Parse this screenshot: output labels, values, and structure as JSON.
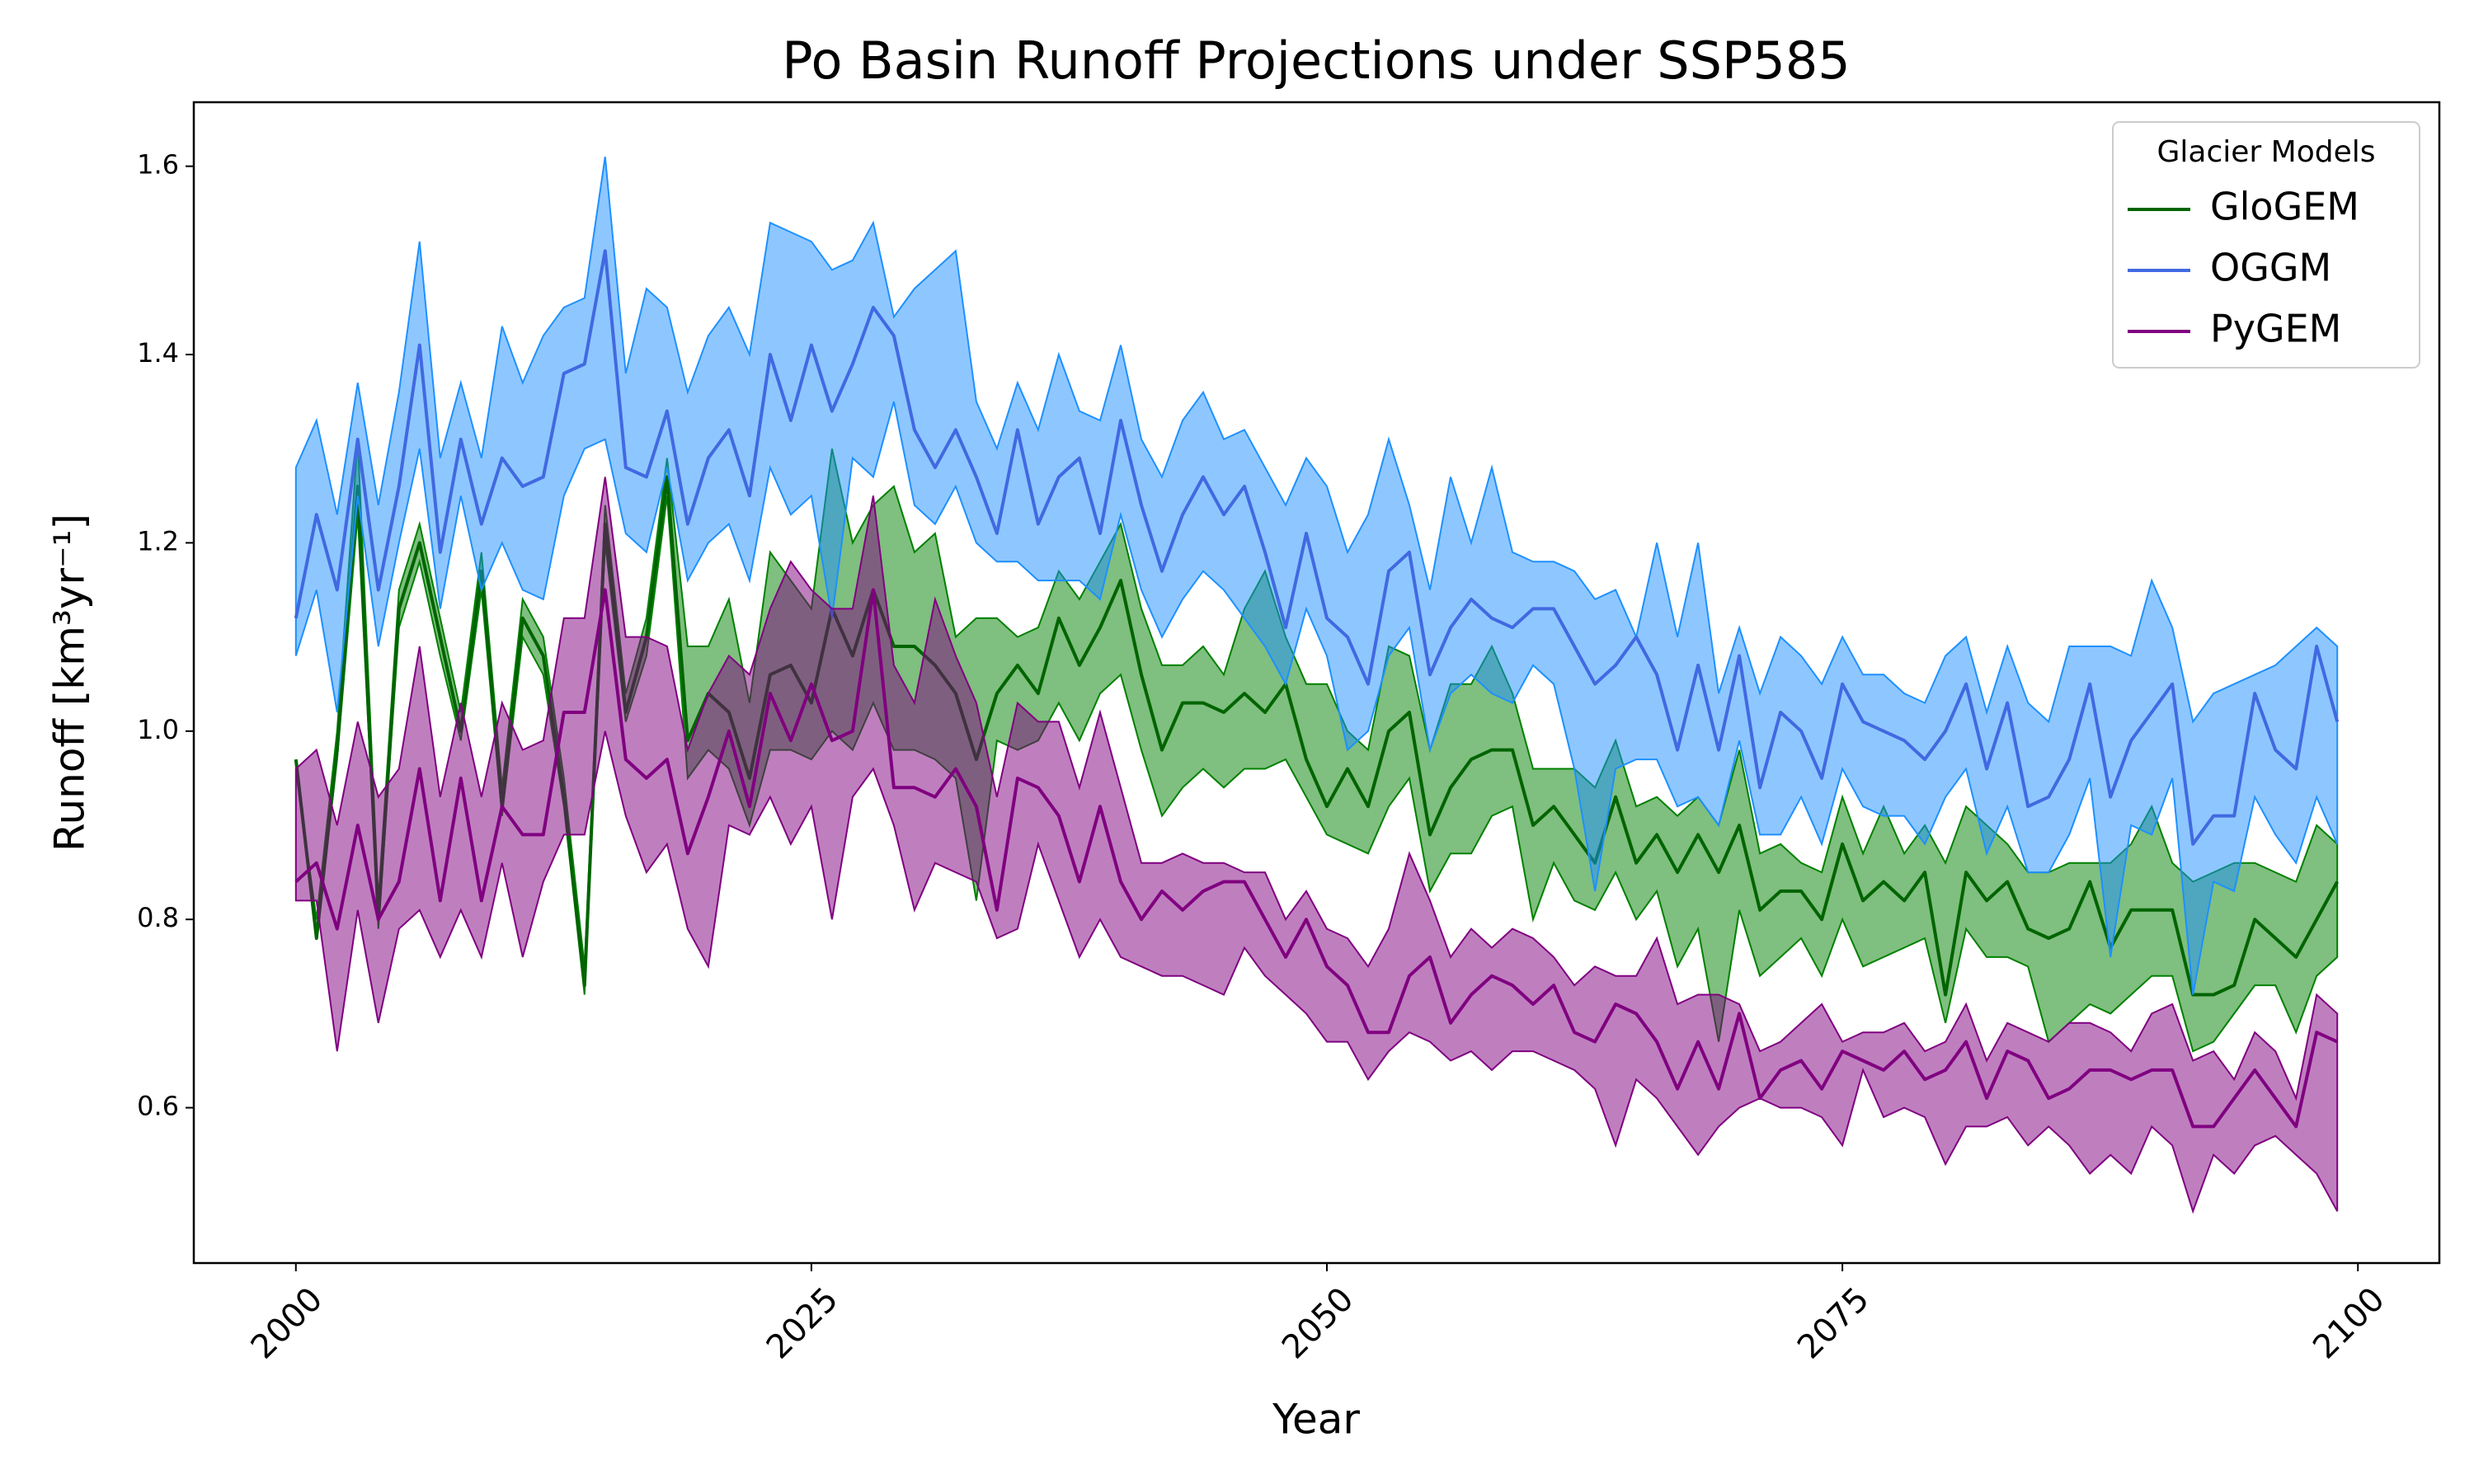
{
  "chart_data": {
    "type": "line-band",
    "title": "Po Basin Runoff Projections under SSP585",
    "x_label": "Year",
    "y_label": "Runoff [km³yr⁻¹]",
    "legend_title": "Glacier Models",
    "legend_position": "upper right",
    "xlim": [
      1995.05,
      2103.95
    ],
    "ylim": [
      0.435,
      1.668
    ],
    "xticks": [
      2000,
      2025,
      2050,
      2075,
      2100
    ],
    "yticks": [
      0.6,
      0.8,
      {
        "value": 1,
        "label": "1.0"
      },
      1.2,
      1.4,
      1.6
    ],
    "x": [
      2000,
      2001,
      2002,
      2003,
      2004,
      2005,
      2006,
      2007,
      2008,
      2009,
      2010,
      2011,
      2012,
      2013,
      2014,
      2015,
      2016,
      2017,
      2018,
      2019,
      2020,
      2021,
      2022,
      2023,
      2024,
      2025,
      2026,
      2027,
      2028,
      2029,
      2030,
      2031,
      2032,
      2033,
      2034,
      2035,
      2036,
      2037,
      2038,
      2039,
      2040,
      2041,
      2042,
      2043,
      2044,
      2045,
      2046,
      2047,
      2048,
      2049,
      2050,
      2051,
      2052,
      2053,
      2054,
      2055,
      2056,
      2057,
      2058,
      2059,
      2060,
      2061,
      2062,
      2063,
      2064,
      2065,
      2066,
      2067,
      2068,
      2069,
      2070,
      2071,
      2072,
      2073,
      2074,
      2075,
      2076,
      2077,
      2078,
      2079,
      2080,
      2081,
      2082,
      2083,
      2084,
      2085,
      2086,
      2087,
      2088,
      2089,
      2090,
      2091,
      2092,
      2093,
      2094,
      2095,
      2096,
      2097,
      2098,
      2099
    ],
    "series": [
      {
        "name": "GloGEM",
        "color": "#006400",
        "band_color": "#008000",
        "values": [
          0.97,
          0.78,
          0.98,
          1.26,
          0.8,
          1.13,
          1.2,
          1.1,
          1.0,
          1.17,
          0.92,
          1.12,
          1.08,
          0.93,
          0.73,
          1.22,
          1.02,
          1.1,
          1.27,
          0.99,
          1.04,
          1.02,
          0.95,
          1.06,
          1.07,
          1.03,
          1.13,
          1.08,
          1.15,
          1.09,
          1.09,
          1.07,
          1.04,
          0.97,
          1.04,
          1.07,
          1.04,
          1.12,
          1.07,
          1.11,
          1.16,
          1.06,
          0.98,
          1.03,
          1.03,
          1.02,
          1.04,
          1.02,
          1.05,
          0.97,
          0.92,
          0.96,
          0.92,
          1.0,
          1.02,
          0.89,
          0.94,
          0.97,
          0.98,
          0.98,
          0.9,
          0.92,
          0.89,
          0.86,
          0.93,
          0.86,
          0.89,
          0.85,
          0.89,
          0.85,
          0.9,
          0.81,
          0.83,
          0.83,
          0.8,
          0.88,
          0.82,
          0.84,
          0.82,
          0.85,
          0.72,
          0.85,
          0.82,
          0.84,
          0.79,
          0.78,
          0.79,
          0.84,
          0.77,
          0.81,
          0.81,
          0.81,
          0.72,
          0.72,
          0.73,
          0.8,
          0.78,
          0.76,
          0.8,
          0.84
        ],
        "upper": [
          0.96,
          0.8,
          1.0,
          1.31,
          0.82,
          1.15,
          1.22,
          1.12,
          1.02,
          1.19,
          0.94,
          1.14,
          1.1,
          0.95,
          0.75,
          1.24,
          1.04,
          1.12,
          1.29,
          1.09,
          1.09,
          1.14,
          1.03,
          1.19,
          1.16,
          1.13,
          1.3,
          1.2,
          1.24,
          1.26,
          1.19,
          1.21,
          1.1,
          1.12,
          1.12,
          1.1,
          1.11,
          1.17,
          1.14,
          1.18,
          1.22,
          1.13,
          1.07,
          1.07,
          1.09,
          1.06,
          1.13,
          1.17,
          1.1,
          1.05,
          1.05,
          1.0,
          0.98,
          1.09,
          1.08,
          0.98,
          1.05,
          1.05,
          1.09,
          1.04,
          0.96,
          0.96,
          0.96,
          0.94,
          0.99,
          0.92,
          0.93,
          0.91,
          0.93,
          0.9,
          0.98,
          0.87,
          0.88,
          0.86,
          0.85,
          0.93,
          0.87,
          0.92,
          0.87,
          0.9,
          0.86,
          0.92,
          0.9,
          0.88,
          0.85,
          0.85,
          0.86,
          0.86,
          0.86,
          0.88,
          0.92,
          0.86,
          0.84,
          0.85,
          0.86,
          0.86,
          0.85,
          0.84,
          0.9,
          0.88
        ],
        "lower": [
          0.96,
          0.78,
          0.97,
          1.23,
          0.79,
          1.11,
          1.18,
          1.08,
          0.99,
          1.15,
          0.91,
          1.1,
          1.06,
          0.92,
          0.72,
          1.2,
          1.01,
          1.08,
          1.25,
          0.95,
          0.98,
          0.96,
          0.9,
          0.98,
          0.98,
          0.97,
          1.0,
          0.98,
          1.03,
          0.98,
          0.98,
          0.97,
          0.95,
          0.82,
          0.99,
          0.98,
          0.99,
          1.03,
          0.99,
          1.04,
          1.06,
          0.98,
          0.91,
          0.94,
          0.96,
          0.94,
          0.96,
          0.96,
          0.97,
          0.93,
          0.89,
          0.88,
          0.87,
          0.92,
          0.95,
          0.83,
          0.87,
          0.87,
          0.91,
          0.92,
          0.8,
          0.86,
          0.82,
          0.81,
          0.85,
          0.8,
          0.83,
          0.75,
          0.79,
          0.67,
          0.81,
          0.74,
          0.76,
          0.78,
          0.74,
          0.8,
          0.75,
          0.76,
          0.77,
          0.78,
          0.69,
          0.79,
          0.76,
          0.76,
          0.75,
          0.67,
          0.69,
          0.71,
          0.7,
          0.72,
          0.74,
          0.74,
          0.66,
          0.67,
          0.7,
          0.73,
          0.73,
          0.68,
          0.74,
          0.76
        ]
      },
      {
        "name": "OGGM",
        "color": "#4169e1",
        "band_color": "#1e90ff",
        "values": [
          1.12,
          1.23,
          1.15,
          1.31,
          1.15,
          1.26,
          1.41,
          1.19,
          1.31,
          1.22,
          1.29,
          1.26,
          1.27,
          1.38,
          1.39,
          1.51,
          1.28,
          1.27,
          1.34,
          1.22,
          1.29,
          1.32,
          1.25,
          1.4,
          1.33,
          1.41,
          1.34,
          1.39,
          1.45,
          1.42,
          1.32,
          1.28,
          1.32,
          1.27,
          1.21,
          1.32,
          1.22,
          1.27,
          1.29,
          1.21,
          1.33,
          1.24,
          1.17,
          1.23,
          1.27,
          1.23,
          1.26,
          1.19,
          1.11,
          1.21,
          1.12,
          1.1,
          1.05,
          1.17,
          1.19,
          1.06,
          1.11,
          1.14,
          1.12,
          1.11,
          1.13,
          1.13,
          1.09,
          1.05,
          1.07,
          1.1,
          1.06,
          0.98,
          1.07,
          0.98,
          1.08,
          0.94,
          1.02,
          1.0,
          0.95,
          1.05,
          1.01,
          1.0,
          0.99,
          0.97,
          1.0,
          1.05,
          0.96,
          1.03,
          0.92,
          0.93,
          0.97,
          1.05,
          0.93,
          0.99,
          1.02,
          1.05,
          0.88,
          0.91,
          0.91,
          1.04,
          0.98,
          0.96,
          1.09,
          1.01
        ],
        "upper": [
          1.28,
          1.33,
          1.23,
          1.37,
          1.24,
          1.36,
          1.52,
          1.29,
          1.37,
          1.29,
          1.43,
          1.37,
          1.42,
          1.45,
          1.46,
          1.61,
          1.38,
          1.47,
          1.45,
          1.36,
          1.42,
          1.45,
          1.4,
          1.54,
          1.53,
          1.52,
          1.49,
          1.5,
          1.54,
          1.44,
          1.47,
          1.49,
          1.51,
          1.35,
          1.3,
          1.37,
          1.32,
          1.4,
          1.34,
          1.33,
          1.41,
          1.31,
          1.27,
          1.33,
          1.36,
          1.31,
          1.32,
          1.28,
          1.24,
          1.29,
          1.26,
          1.19,
          1.23,
          1.31,
          1.24,
          1.15,
          1.27,
          1.2,
          1.28,
          1.19,
          1.18,
          1.18,
          1.17,
          1.14,
          1.15,
          1.1,
          1.2,
          1.1,
          1.2,
          1.04,
          1.11,
          1.04,
          1.1,
          1.08,
          1.05,
          1.1,
          1.06,
          1.06,
          1.04,
          1.03,
          1.08,
          1.1,
          1.02,
          1.09,
          1.03,
          1.01,
          1.09,
          1.09,
          1.09,
          1.08,
          1.16,
          1.11,
          1.01,
          1.04,
          1.05,
          1.06,
          1.07,
          1.09,
          1.11,
          1.09
        ],
        "lower": [
          1.08,
          1.15,
          1.02,
          1.25,
          1.09,
          1.2,
          1.3,
          1.13,
          1.25,
          1.15,
          1.2,
          1.15,
          1.14,
          1.25,
          1.3,
          1.31,
          1.21,
          1.19,
          1.28,
          1.16,
          1.2,
          1.22,
          1.16,
          1.28,
          1.23,
          1.25,
          1.12,
          1.29,
          1.27,
          1.35,
          1.24,
          1.22,
          1.26,
          1.2,
          1.18,
          1.18,
          1.16,
          1.16,
          1.16,
          1.14,
          1.23,
          1.15,
          1.1,
          1.14,
          1.17,
          1.15,
          1.12,
          1.09,
          1.05,
          1.13,
          1.08,
          0.98,
          1.0,
          1.08,
          1.11,
          0.98,
          1.04,
          1.06,
          1.04,
          1.03,
          1.07,
          1.05,
          0.96,
          0.83,
          0.96,
          0.97,
          0.97,
          0.92,
          0.93,
          0.9,
          0.99,
          0.89,
          0.89,
          0.93,
          0.88,
          0.96,
          0.92,
          0.91,
          0.91,
          0.88,
          0.93,
          0.96,
          0.87,
          0.92,
          0.85,
          0.85,
          0.89,
          0.95,
          0.76,
          0.9,
          0.89,
          0.95,
          0.72,
          0.84,
          0.83,
          0.93,
          0.89,
          0.86,
          0.93,
          0.88
        ]
      },
      {
        "name": "PyGEM",
        "color": "#800080",
        "band_color": "#800080",
        "values": [
          0.84,
          0.86,
          0.79,
          0.9,
          0.8,
          0.84,
          0.96,
          0.82,
          0.95,
          0.82,
          0.92,
          0.89,
          0.89,
          1.02,
          1.02,
          1.15,
          0.97,
          0.95,
          0.97,
          0.87,
          0.93,
          1.0,
          0.92,
          1.04,
          0.99,
          1.05,
          0.99,
          1.0,
          1.15,
          0.94,
          0.94,
          0.93,
          0.96,
          0.92,
          0.81,
          0.95,
          0.94,
          0.91,
          0.84,
          0.92,
          0.84,
          0.8,
          0.83,
          0.81,
          0.83,
          0.84,
          0.84,
          0.8,
          0.76,
          0.8,
          0.75,
          0.73,
          0.68,
          0.68,
          0.74,
          0.76,
          0.69,
          0.72,
          0.74,
          0.73,
          0.71,
          0.73,
          0.68,
          0.67,
          0.71,
          0.7,
          0.67,
          0.62,
          0.67,
          0.62,
          0.7,
          0.61,
          0.64,
          0.65,
          0.62,
          0.66,
          0.65,
          0.64,
          0.66,
          0.63,
          0.64,
          0.67,
          0.61,
          0.66,
          0.65,
          0.61,
          0.62,
          0.64,
          0.64,
          0.63,
          0.64,
          0.64,
          0.58,
          0.58,
          0.61,
          0.64,
          0.61,
          0.58,
          0.68,
          0.67
        ],
        "upper": [
          0.96,
          0.98,
          0.9,
          1.01,
          0.93,
          0.96,
          1.09,
          0.93,
          1.03,
          0.93,
          1.03,
          0.98,
          0.99,
          1.12,
          1.12,
          1.27,
          1.1,
          1.1,
          1.09,
          0.98,
          1.04,
          1.08,
          1.06,
          1.13,
          1.18,
          1.15,
          1.13,
          1.13,
          1.25,
          1.07,
          1.03,
          1.14,
          1.08,
          1.03,
          0.93,
          1.03,
          1.01,
          1.01,
          0.94,
          1.02,
          0.94,
          0.86,
          0.86,
          0.87,
          0.86,
          0.86,
          0.85,
          0.85,
          0.8,
          0.83,
          0.79,
          0.78,
          0.75,
          0.79,
          0.87,
          0.82,
          0.76,
          0.79,
          0.77,
          0.79,
          0.78,
          0.76,
          0.73,
          0.75,
          0.74,
          0.74,
          0.78,
          0.71,
          0.72,
          0.72,
          0.71,
          0.66,
          0.67,
          0.69,
          0.71,
          0.67,
          0.68,
          0.68,
          0.69,
          0.66,
          0.67,
          0.71,
          0.65,
          0.69,
          0.68,
          0.67,
          0.69,
          0.69,
          0.68,
          0.66,
          0.7,
          0.71,
          0.65,
          0.66,
          0.63,
          0.68,
          0.66,
          0.61,
          0.72,
          0.7
        ],
        "lower": [
          0.82,
          0.82,
          0.66,
          0.81,
          0.69,
          0.79,
          0.81,
          0.76,
          0.81,
          0.76,
          0.86,
          0.76,
          0.84,
          0.89,
          0.89,
          1.0,
          0.91,
          0.85,
          0.88,
          0.79,
          0.75,
          0.9,
          0.89,
          0.93,
          0.88,
          0.92,
          0.8,
          0.93,
          0.96,
          0.9,
          0.81,
          0.86,
          0.85,
          0.84,
          0.78,
          0.79,
          0.88,
          0.82,
          0.76,
          0.8,
          0.76,
          0.75,
          0.74,
          0.74,
          0.73,
          0.72,
          0.77,
          0.74,
          0.72,
          0.7,
          0.67,
          0.67,
          0.63,
          0.66,
          0.68,
          0.67,
          0.65,
          0.66,
          0.64,
          0.66,
          0.66,
          0.65,
          0.64,
          0.62,
          0.56,
          0.63,
          0.61,
          0.58,
          0.55,
          0.58,
          0.6,
          0.61,
          0.6,
          0.6,
          0.59,
          0.56,
          0.64,
          0.59,
          0.6,
          0.59,
          0.54,
          0.58,
          0.58,
          0.59,
          0.56,
          0.58,
          0.56,
          0.53,
          0.55,
          0.53,
          0.58,
          0.56,
          0.49,
          0.55,
          0.53,
          0.56,
          0.57,
          0.55,
          0.53,
          0.49
        ]
      }
    ]
  }
}
